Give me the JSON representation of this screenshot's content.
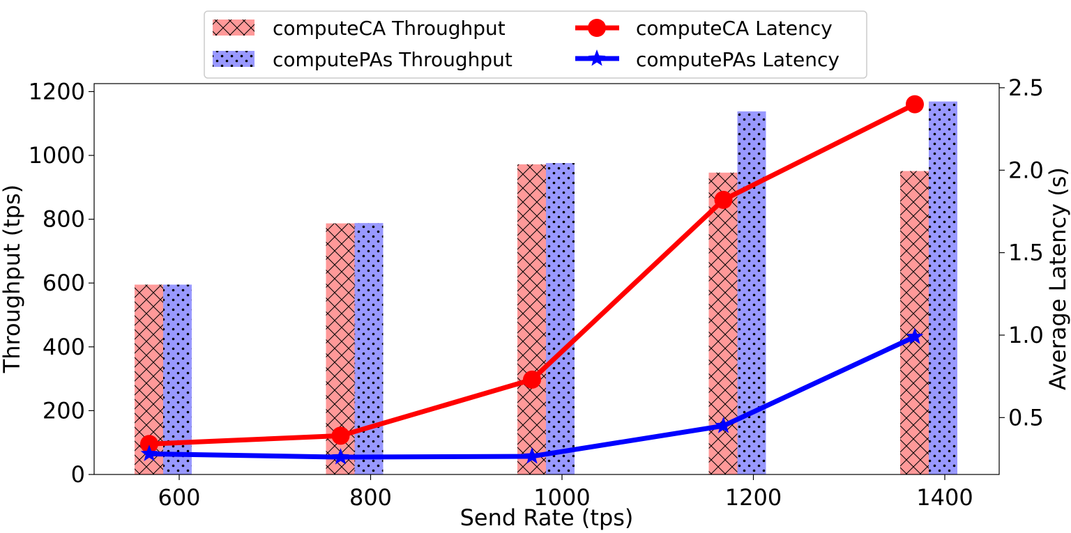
{
  "chart_data": {
    "type": "bar+line",
    "categories": [
      "600",
      "800",
      "1000",
      "1200",
      "1400"
    ],
    "xlabel": "Send Rate (tps)",
    "ylabel": "Throughput (tps)",
    "y2label": "Average Latency (s)",
    "ylim": [
      0,
      1225
    ],
    "y2lim": [
      0.155,
      2.525
    ],
    "yticks": [
      "0",
      "200",
      "400",
      "600",
      "800",
      "1000",
      "1200"
    ],
    "y2ticks": [
      "0.5",
      "1.0",
      "1.5",
      "2.0",
      "2.5"
    ],
    "legend_position": "top-center",
    "bars": [
      {
        "name": "computeCA Throughput",
        "color": "#ff9999",
        "pattern": "crosshatch",
        "values": [
          595,
          787,
          972,
          946,
          951
        ]
      },
      {
        "name": "computePAs Throughput",
        "color": "#9999ff",
        "pattern": "dots",
        "values": [
          595,
          788,
          976,
          1138,
          1169
        ]
      }
    ],
    "lines": [
      {
        "name": "computeCA Latency",
        "color": "#ff0000",
        "marker": "circle",
        "values": [
          0.34,
          0.39,
          0.73,
          1.82,
          2.4
        ]
      },
      {
        "name": "computePAs Latency",
        "color": "#0000ff",
        "marker": "star",
        "values": [
          0.28,
          0.26,
          0.265,
          0.45,
          0.99
        ]
      }
    ]
  }
}
